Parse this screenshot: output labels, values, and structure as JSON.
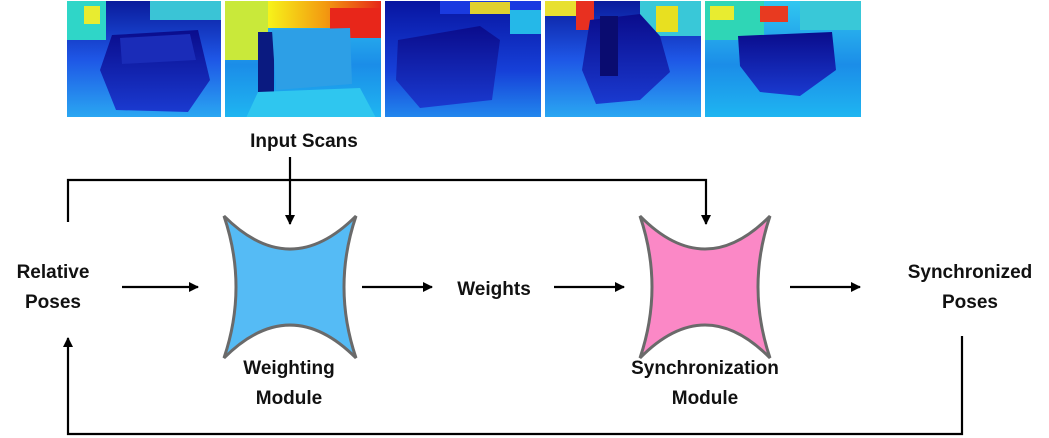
{
  "input_scans": {
    "label": "Input Scans",
    "count": 5
  },
  "relative_poses": {
    "line1": "Relative",
    "line2": "Poses"
  },
  "weighting_module": {
    "line1": "Weighting",
    "line2": "Module",
    "color": "#55bbf5"
  },
  "weights": {
    "label": "Weights"
  },
  "synchronization_module": {
    "line1": "Synchronization",
    "line2": "Module",
    "color": "#fb88c6"
  },
  "synchronized_poses": {
    "line1": "Synchronized",
    "line2": "Poses"
  }
}
